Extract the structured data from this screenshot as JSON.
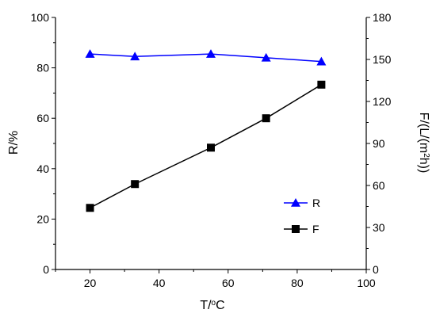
{
  "chart_data": {
    "type": "line",
    "x": [
      20,
      33,
      55,
      71,
      87
    ],
    "xlabel": "T/",
    "xlabel_superscript": "o",
    "xlabel_suffix": "C",
    "xlim": [
      10,
      100
    ],
    "xticks": [
      "20",
      "40",
      "60",
      "80",
      "100"
    ],
    "y_left": {
      "label": "R/%",
      "lim": [
        0,
        100
      ],
      "ticks": [
        "0",
        "20",
        "40",
        "60",
        "80",
        "100"
      ]
    },
    "y_right": {
      "label_prefix": "F/(L/(m",
      "label_superscript": "2",
      "label_suffix": "h))",
      "lim": [
        0,
        180
      ],
      "ticks": [
        "0",
        "30",
        "60",
        "90",
        "120",
        "150",
        "180"
      ]
    },
    "series": [
      {
        "name": "R",
        "axis": "left",
        "values": [
          85.5,
          84.5,
          85.5,
          84.0,
          82.5
        ],
        "color": "#0000ff",
        "marker": "triangle"
      },
      {
        "name": "F",
        "axis": "right",
        "values": [
          44,
          61,
          87,
          108,
          132
        ],
        "color": "#000000",
        "marker": "square"
      }
    ],
    "legend": {
      "placement": "center-right",
      "entries": [
        "R",
        "F"
      ]
    },
    "grid": false
  }
}
